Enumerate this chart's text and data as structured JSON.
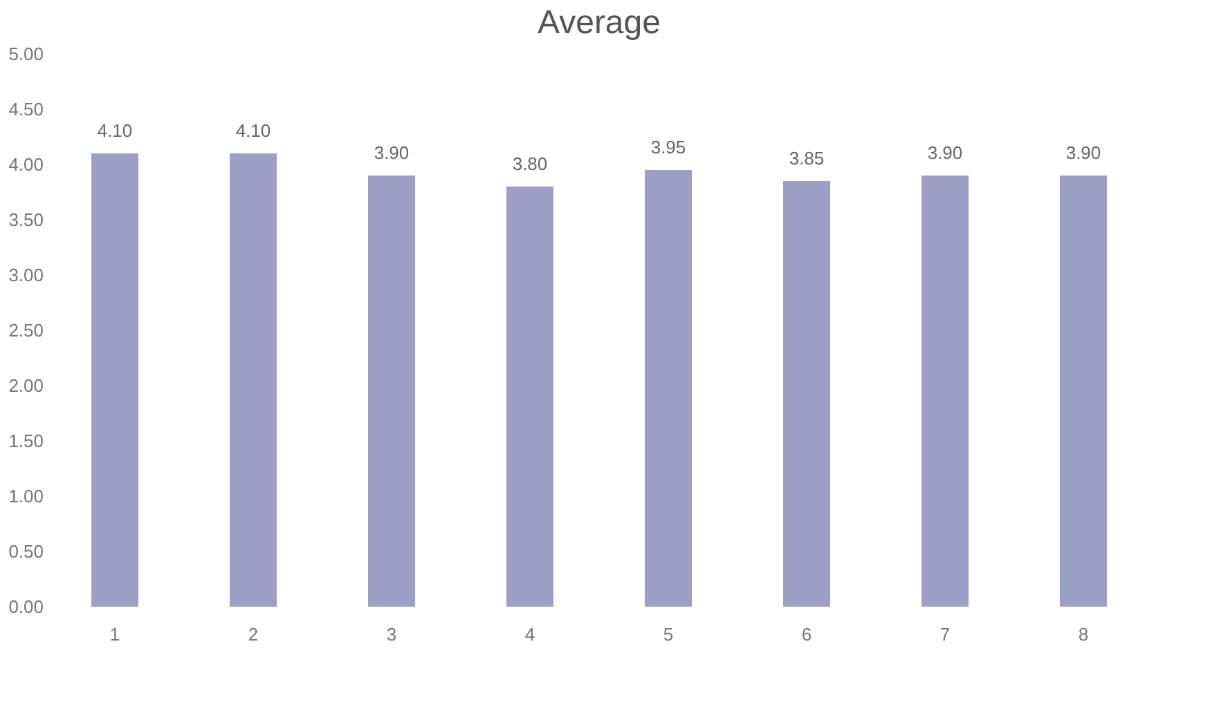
{
  "chart_data": {
    "type": "bar",
    "title": "Average",
    "categories": [
      "1",
      "2",
      "3",
      "4",
      "5",
      "6",
      "7",
      "8"
    ],
    "values": [
      4.1,
      4.1,
      3.9,
      3.8,
      3.95,
      3.85,
      3.9,
      3.9
    ],
    "value_labels": [
      "4.10",
      "4.10",
      "3.90",
      "3.80",
      "3.95",
      "3.85",
      "3.90",
      "3.90"
    ],
    "color": "#9c9fc6",
    "ylim": [
      0,
      5
    ],
    "yticks": [
      {
        "value": 0,
        "label": "0.00"
      },
      {
        "value": 0.5,
        "label": "0.50"
      },
      {
        "value": 1,
        "label": "1.00"
      },
      {
        "value": 1.5,
        "label": "1.50"
      },
      {
        "value": 2,
        "label": "2.00"
      },
      {
        "value": 2.5,
        "label": "2.50"
      },
      {
        "value": 3,
        "label": "3.00"
      },
      {
        "value": 3.5,
        "label": "3.50"
      },
      {
        "value": 4,
        "label": "4.00"
      },
      {
        "value": 4.5,
        "label": "4.50"
      },
      {
        "value": 5,
        "label": "5.00"
      }
    ],
    "grid": false
  }
}
